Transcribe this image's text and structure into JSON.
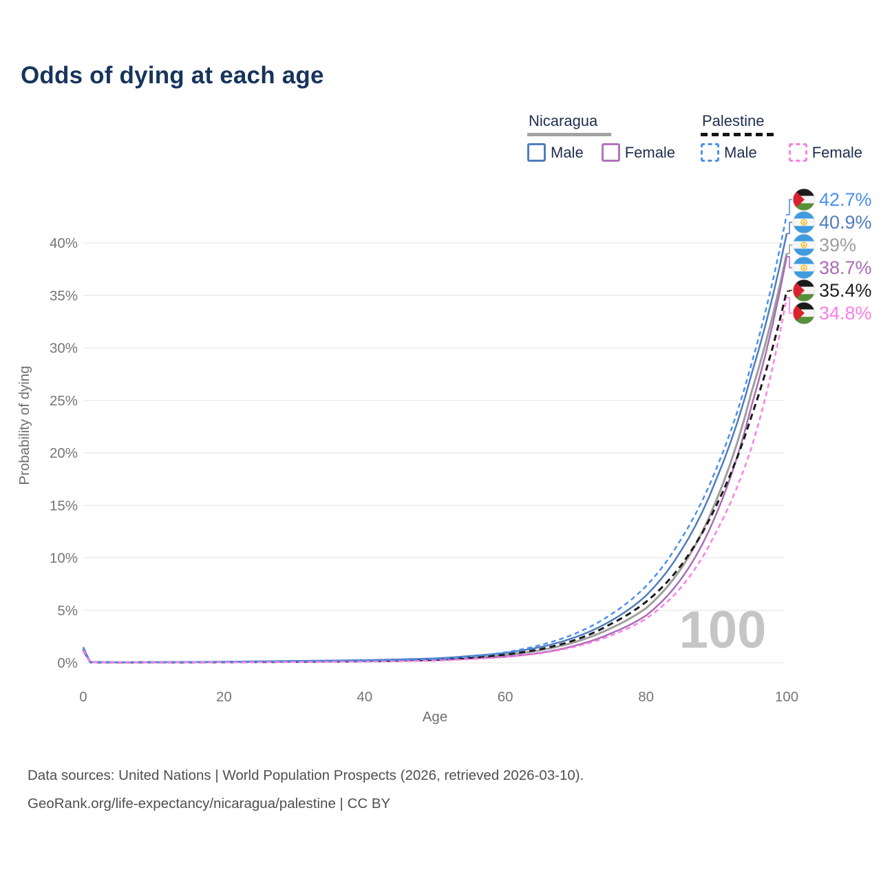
{
  "title": "Odds of dying at each age",
  "watermark": "100",
  "legend": {
    "groups": [
      {
        "country": "Nicaragua",
        "style": "solid",
        "color": "#a3a3a3",
        "items": [
          {
            "label": "Male",
            "color": "#4f7cbe"
          },
          {
            "label": "Female",
            "color": "#b273bb"
          }
        ]
      },
      {
        "country": "Palestine",
        "style": "dashed",
        "color": "#151515",
        "items": [
          {
            "label": "Male",
            "color": "#4b8ff2"
          },
          {
            "label": "Female",
            "color": "#fb7ee4"
          }
        ]
      }
    ]
  },
  "footer": {
    "line1": "Data sources: United Nations | World Population Prospects (2026, retrieved 2026-03-10).",
    "line2": "GeoRank.org/life-expectancy/nicaragua/palestine | CC BY"
  },
  "chart_data": {
    "type": "line",
    "title": "Odds of dying at each age",
    "xlabel": "Age",
    "ylabel": "Probability of dying",
    "xlim": [
      0,
      100
    ],
    "ylim": [
      0,
      44
    ],
    "grid": "horizontal",
    "legend_position": "top-right",
    "xticks": [
      "0",
      "20",
      "40",
      "60",
      "80",
      "100"
    ],
    "xtick_values": [
      0,
      20,
      40,
      60,
      80,
      100
    ],
    "yticks": [
      "0%",
      "5%",
      "10%",
      "15%",
      "20%",
      "25%",
      "30%",
      "35%",
      "40%"
    ],
    "ytick_values": [
      0,
      5,
      10,
      15,
      20,
      25,
      30,
      35,
      40
    ],
    "series": [
      {
        "name": "nicaragua-total",
        "country": "Nicaragua",
        "sex": "Both",
        "style": "solid",
        "color": "#9e9e9e",
        "width": 3,
        "age": [
          0,
          1,
          5,
          15,
          30,
          40,
          50,
          55,
          60,
          65,
          70,
          75,
          80,
          85,
          90,
          95,
          100
        ],
        "pct": [
          1.2,
          0.07,
          0.04,
          0.06,
          0.14,
          0.2,
          0.33,
          0.5,
          0.75,
          1.2,
          2.0,
          3.3,
          5.2,
          9.0,
          15.5,
          25.8,
          39.0
        ]
      },
      {
        "name": "nicaragua-female",
        "country": "Nicaragua",
        "sex": "Female",
        "style": "solid",
        "color": "#a96cb5",
        "width": 2.5,
        "age": [
          0,
          1,
          5,
          15,
          30,
          40,
          50,
          55,
          60,
          65,
          70,
          75,
          80,
          85,
          90,
          95,
          100
        ],
        "pct": [
          1.1,
          0.06,
          0.04,
          0.05,
          0.1,
          0.15,
          0.25,
          0.4,
          0.58,
          0.95,
          1.65,
          2.8,
          4.5,
          8.0,
          14.2,
          24.5,
          38.7
        ]
      },
      {
        "name": "palestine-total",
        "country": "Palestine",
        "sex": "Both",
        "style": "dashed",
        "color": "#1a1a1a",
        "width": 3,
        "age": [
          0,
          1,
          5,
          15,
          30,
          40,
          50,
          55,
          60,
          65,
          70,
          75,
          80,
          85,
          90,
          95,
          100
        ],
        "pct": [
          1.3,
          0.06,
          0.04,
          0.05,
          0.1,
          0.15,
          0.28,
          0.48,
          0.78,
          1.3,
          2.2,
          3.7,
          5.8,
          9.3,
          15.0,
          23.5,
          35.4
        ]
      },
      {
        "name": "nicaragua-male",
        "country": "Nicaragua",
        "sex": "Male",
        "style": "solid",
        "color": "#4f7cbe",
        "width": 2.5,
        "age": [
          0,
          1,
          5,
          15,
          30,
          40,
          50,
          55,
          60,
          65,
          70,
          75,
          80,
          85,
          90,
          95,
          100
        ],
        "pct": [
          1.4,
          0.08,
          0.05,
          0.08,
          0.18,
          0.25,
          0.42,
          0.65,
          0.95,
          1.5,
          2.45,
          4.0,
          6.4,
          10.7,
          17.5,
          27.5,
          40.9
        ]
      },
      {
        "name": "palestine-male",
        "country": "Palestine",
        "sex": "Male",
        "style": "dashed",
        "color": "#4b8ff2",
        "width": 2.5,
        "age": [
          0,
          1,
          5,
          15,
          30,
          40,
          50,
          55,
          60,
          65,
          70,
          75,
          80,
          85,
          90,
          95,
          100
        ],
        "pct": [
          1.5,
          0.07,
          0.05,
          0.06,
          0.12,
          0.18,
          0.35,
          0.6,
          1.0,
          1.7,
          2.8,
          4.6,
          7.3,
          11.8,
          18.5,
          28.5,
          42.7
        ]
      },
      {
        "name": "palestine-female",
        "country": "Palestine",
        "sex": "Female",
        "style": "dashed",
        "color": "#fb7ee4",
        "width": 2.5,
        "age": [
          0,
          1,
          5,
          15,
          30,
          40,
          50,
          55,
          60,
          65,
          70,
          75,
          80,
          85,
          90,
          95,
          100
        ],
        "pct": [
          1.2,
          0.06,
          0.04,
          0.05,
          0.08,
          0.12,
          0.2,
          0.35,
          0.55,
          0.9,
          1.55,
          2.6,
          4.2,
          7.2,
          12.5,
          20.5,
          34.8
        ]
      }
    ],
    "end_labels": [
      {
        "value": "42.7%",
        "series": "palestine-male",
        "flag": "palestine-flag-icon",
        "color": "#4b8ff2"
      },
      {
        "value": "40.9%",
        "series": "nicaragua-male",
        "flag": "nicaragua-flag-icon",
        "color": "#4f7cbe"
      },
      {
        "value": "39%",
        "series": "nicaragua-total",
        "flag": "nicaragua-flag-icon",
        "color": "#9e9e9e"
      },
      {
        "value": "38.7%",
        "series": "nicaragua-female",
        "flag": "nicaragua-flag-icon",
        "color": "#a96cb5"
      },
      {
        "value": "35.4%",
        "series": "palestine-total",
        "flag": "palestine-flag-icon",
        "color": "#1f1f1f"
      },
      {
        "value": "34.8%",
        "series": "palestine-female",
        "flag": "palestine-flag-icon",
        "color": "#fb7ee4"
      }
    ]
  }
}
